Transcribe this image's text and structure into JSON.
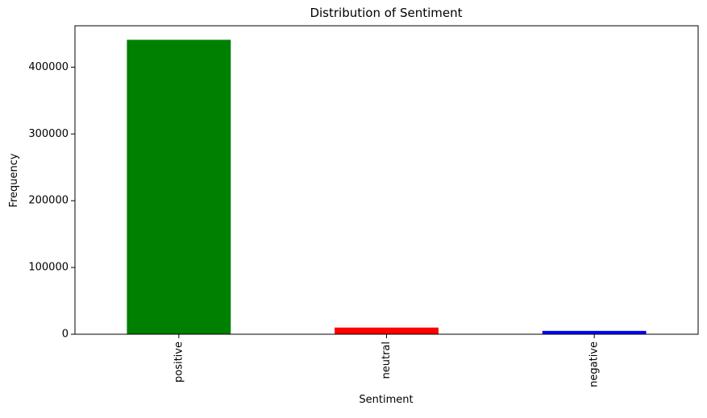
{
  "chart_data": {
    "type": "bar",
    "title": "Distribution of Sentiment",
    "xlabel": "Sentiment",
    "ylabel": "Frequency",
    "categories": [
      "positive",
      "neutral",
      "negative"
    ],
    "values": [
      441000,
      10000,
      5000
    ],
    "colors": [
      "#008000",
      "#ff0000",
      "#0000ff"
    ],
    "ylim": [
      0,
      462000
    ],
    "yticks": [
      0,
      100000,
      200000,
      300000,
      400000
    ],
    "ytick_labels": [
      "0",
      "100000",
      "200000",
      "300000",
      "400000"
    ],
    "x_tick_rotation": "vertical",
    "grid": false,
    "legend": "none"
  }
}
